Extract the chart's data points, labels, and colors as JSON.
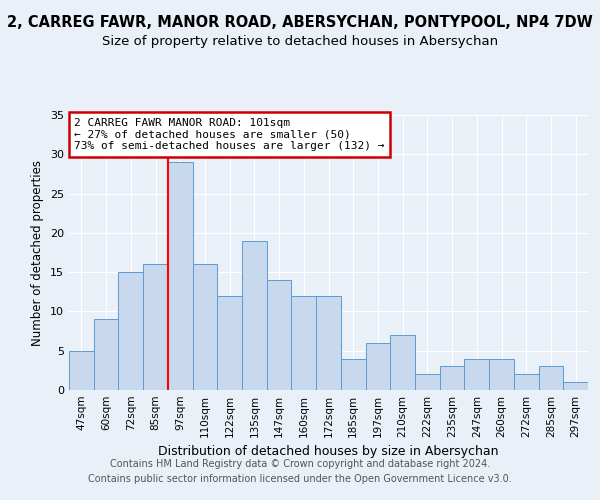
{
  "title": "2, CARREG FAWR, MANOR ROAD, ABERSYCHAN, PONTYPOOL, NP4 7DW",
  "subtitle": "Size of property relative to detached houses in Abersychan",
  "xlabel": "Distribution of detached houses by size in Abersychan",
  "ylabel": "Number of detached properties",
  "bin_labels": [
    "47sqm",
    "60sqm",
    "72sqm",
    "85sqm",
    "97sqm",
    "110sqm",
    "122sqm",
    "135sqm",
    "147sqm",
    "160sqm",
    "172sqm",
    "185sqm",
    "197sqm",
    "210sqm",
    "222sqm",
    "235sqm",
    "247sqm",
    "260sqm",
    "272sqm",
    "285sqm",
    "297sqm"
  ],
  "bar_heights": [
    5,
    9,
    15,
    16,
    29,
    16,
    12,
    19,
    14,
    12,
    12,
    4,
    6,
    7,
    2,
    3,
    4,
    4,
    2,
    3,
    1
  ],
  "bar_color": "#c9d9ed",
  "bar_edge_color": "#5b9bd5",
  "red_line_x": 4,
  "annotation_title": "2 CARREG FAWR MANOR ROAD: 101sqm",
  "annotation_line1": "← 27% of detached houses are smaller (50)",
  "annotation_line2": "73% of semi-detached houses are larger (132) →",
  "annotation_box_color": "#ffffff",
  "annotation_box_edge": "#cc0000",
  "ylim": [
    0,
    35
  ],
  "yticks": [
    0,
    5,
    10,
    15,
    20,
    25,
    30,
    35
  ],
  "footer1": "Contains HM Land Registry data © Crown copyright and database right 2024.",
  "footer2": "Contains public sector information licensed under the Open Government Licence v3.0.",
  "bg_color": "#eaf0f8",
  "plot_bg_color": "#eaf0f8",
  "title_fontsize": 10.5,
  "subtitle_fontsize": 9.5,
  "footer_fontsize": 7.0
}
